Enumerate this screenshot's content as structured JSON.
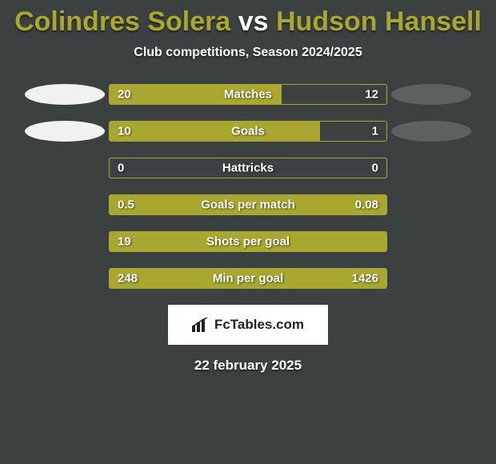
{
  "title": {
    "player1": "Colindres Solera",
    "vs": "vs",
    "player2": "Hudson Hansell",
    "color": "#a9a72f",
    "vs_color": "#ffffff",
    "fontsize": 34
  },
  "subtitle": {
    "text": "Club competitions, Season 2024/2025",
    "fontsize": 16
  },
  "avatars": {
    "left_color": "#f1f1f1",
    "right_color": "#5a6160"
  },
  "bars": {
    "track_width": 348,
    "track_height": 26,
    "border_color": "#a9a72f",
    "fill_color": "#a9a72f",
    "label_fontsize": 15,
    "value_fontsize": 15,
    "rows": [
      {
        "label": "Matches",
        "left": "20",
        "right": "12",
        "fill_pct": 62,
        "show_left_avatar": true,
        "show_right_avatar": true
      },
      {
        "label": "Goals",
        "left": "10",
        "right": "1",
        "fill_pct": 76,
        "show_left_avatar": true,
        "show_right_avatar": true
      },
      {
        "label": "Hattricks",
        "left": "0",
        "right": "0",
        "fill_pct": 0,
        "show_left_avatar": false,
        "show_right_avatar": false
      },
      {
        "label": "Goals per match",
        "left": "0.5",
        "right": "0.08",
        "fill_pct": 100,
        "show_left_avatar": false,
        "show_right_avatar": false
      },
      {
        "label": "Shots per goal",
        "left": "19",
        "right": "",
        "fill_pct": 100,
        "show_left_avatar": false,
        "show_right_avatar": false
      },
      {
        "label": "Min per goal",
        "left": "248",
        "right": "1426",
        "fill_pct": 100,
        "show_left_avatar": false,
        "show_right_avatar": false
      }
    ]
  },
  "logo": {
    "text": "FcTables.com",
    "fontsize": 17
  },
  "date": {
    "text": "22 february 2025",
    "fontsize": 17
  },
  "background_color": "#3a4140"
}
